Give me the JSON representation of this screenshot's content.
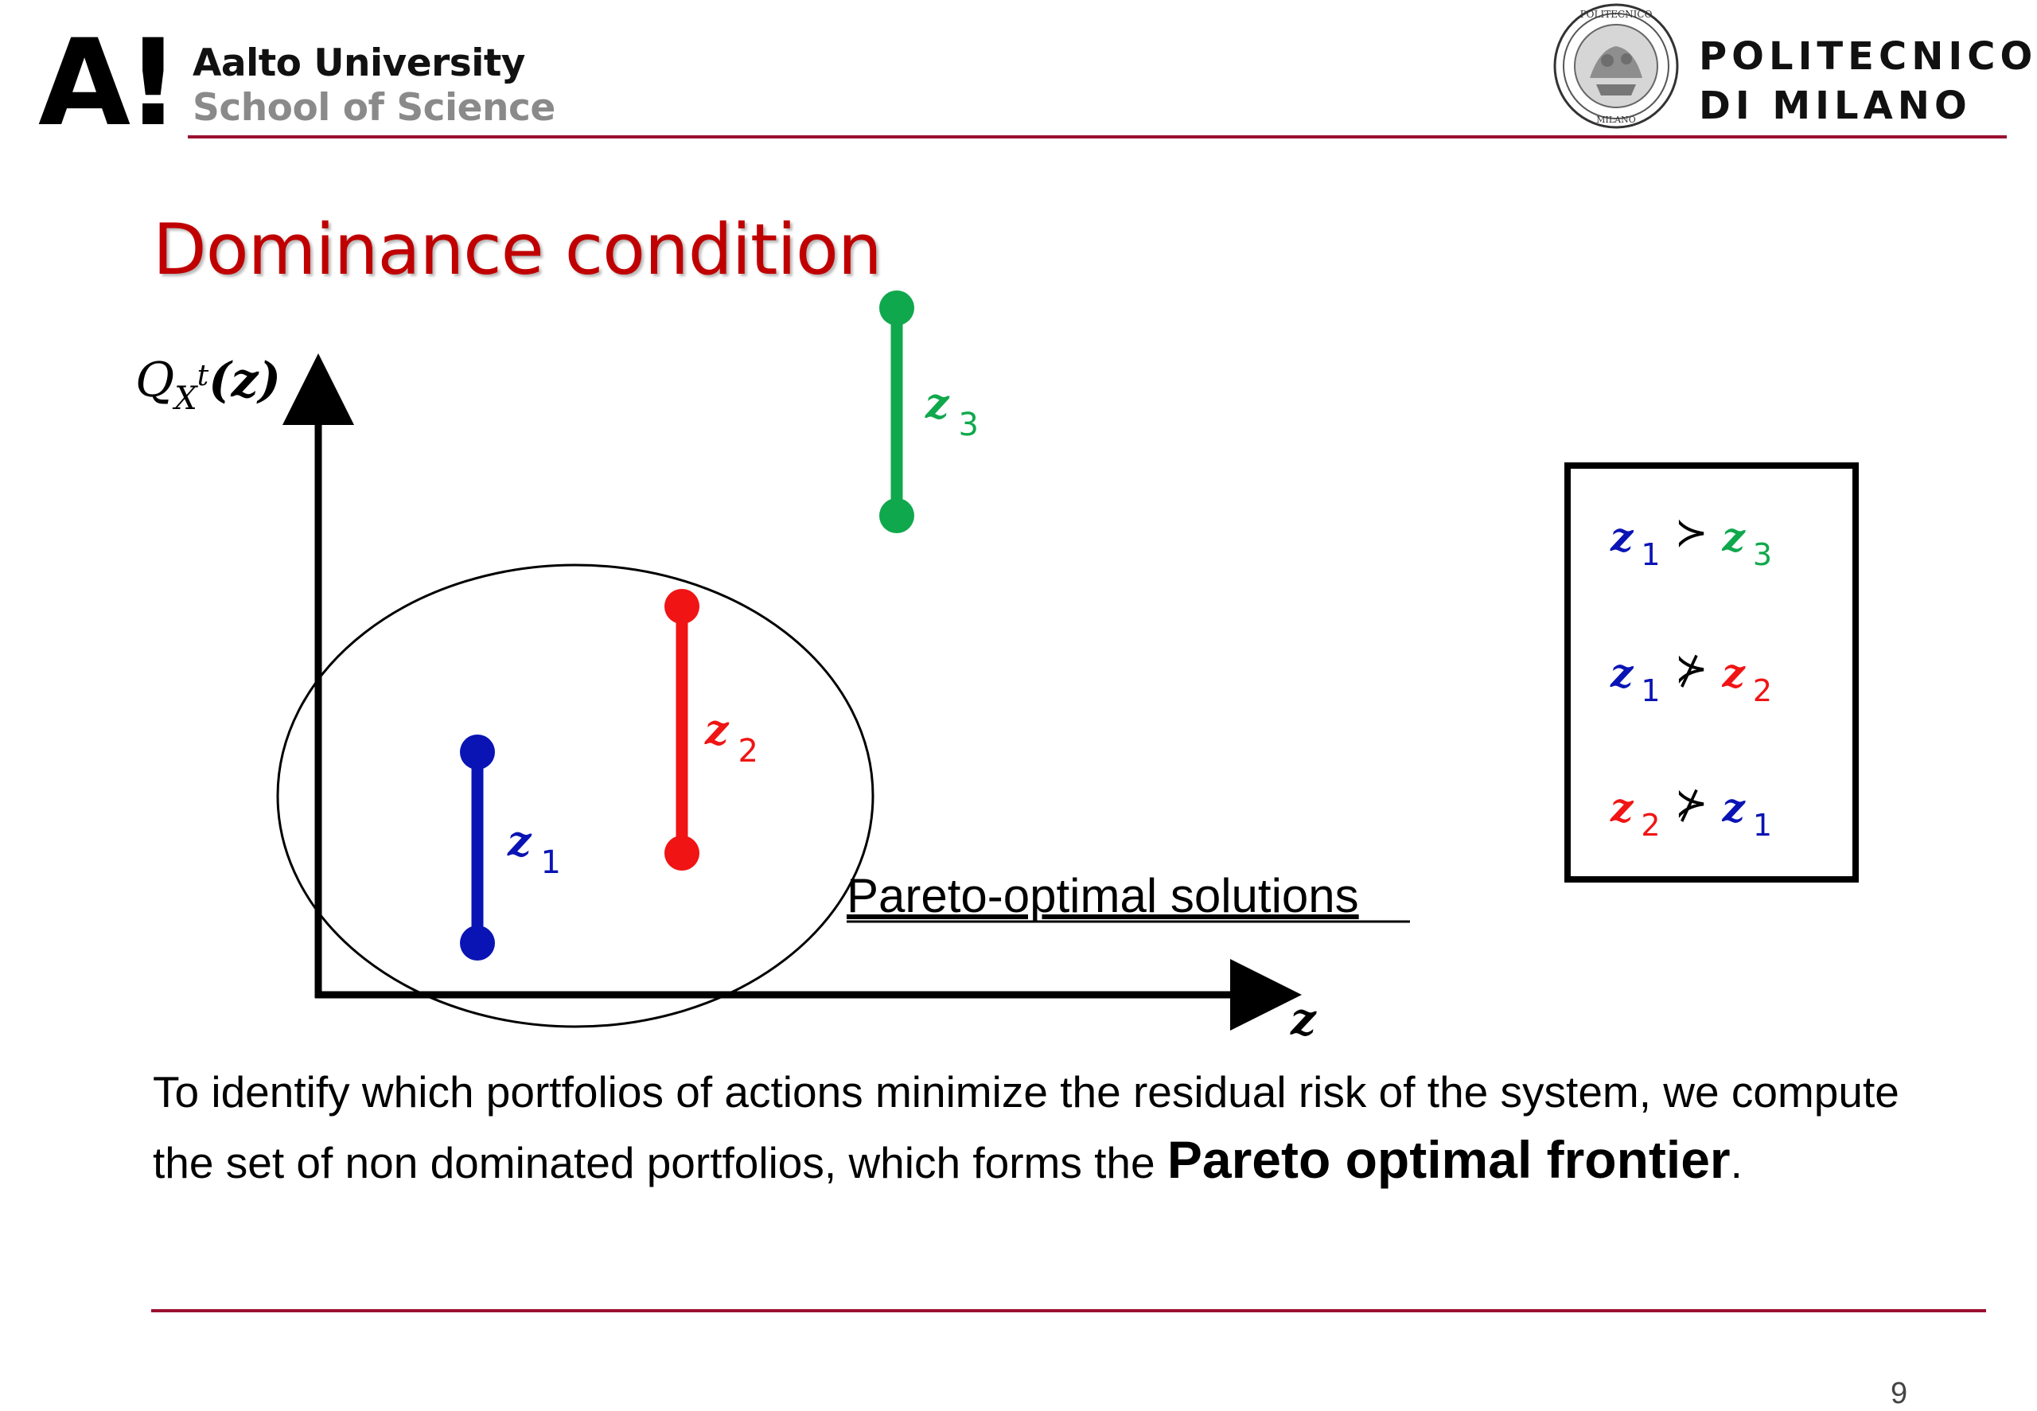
{
  "header": {
    "left_logo_lettering": "A!",
    "left_title": "Aalto University",
    "left_subtitle": "School of Science",
    "right_logo_lettering": [
      "POLITECNICO",
      "MILANO"
    ],
    "right_name_line1": "POLITECNICO",
    "right_name_line2": "DI MILANO",
    "brand_color": "#9b1030"
  },
  "slide": {
    "title": "Dominance condition",
    "title_color": "#c00000",
    "page_number": "9"
  },
  "diagram": {
    "y_axis_label": {
      "symbol": "Q",
      "sub": "X",
      "subsup": "t",
      "arg": "(z)"
    },
    "x_axis_label": "z",
    "solutions": [
      {
        "name": "z",
        "index": "1",
        "color": "#0a14b4"
      },
      {
        "name": "z",
        "index": "2",
        "color": "#f01414"
      },
      {
        "name": "z",
        "index": "3",
        "color": "#10a84c"
      }
    ],
    "region_label": "Pareto-optimal solutions",
    "relations": [
      {
        "left": {
          "name": "z",
          "index": "1",
          "color": "#0a14b4"
        },
        "op": "≻",
        "right": {
          "name": "z",
          "index": "3",
          "color": "#10a84c"
        }
      },
      {
        "left": {
          "name": "z",
          "index": "1",
          "color": "#0a14b4"
        },
        "op": "⊁",
        "right": {
          "name": "z",
          "index": "2",
          "color": "#f01414"
        }
      },
      {
        "left": {
          "name": "z",
          "index": "2",
          "color": "#f01414"
        },
        "op": "⊁",
        "right": {
          "name": "z",
          "index": "1",
          "color": "#0a14b4"
        }
      }
    ]
  },
  "body": {
    "text_before": "To identify which portfolios of actions minimize the residual risk of the system, we compute the set of non dominated portfolios, which forms the ",
    "emphasis": "Pareto optimal frontier",
    "text_after": "."
  }
}
